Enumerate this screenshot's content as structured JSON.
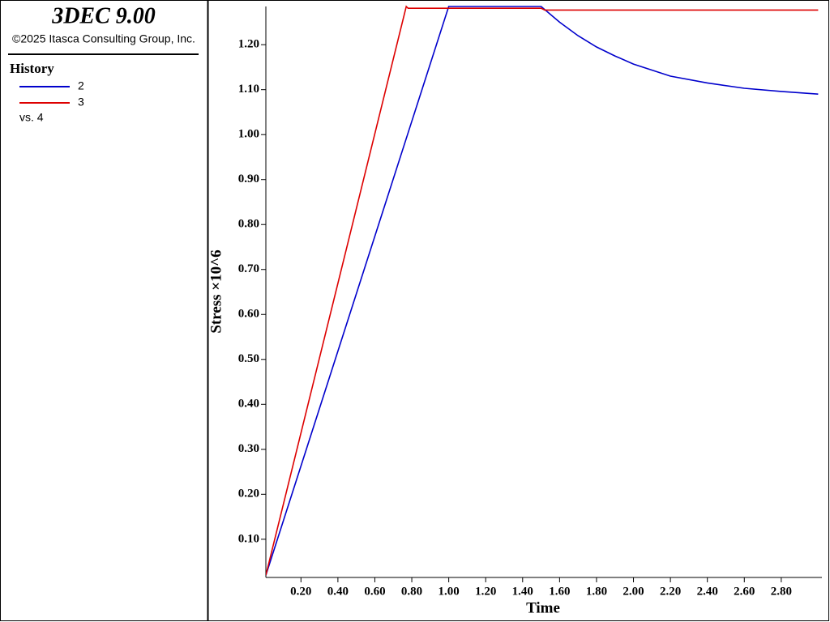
{
  "chart_data": {
    "type": "line",
    "app_title": "3DEC 9.00",
    "copyright": "©2025 Itasca Consulting Group, Inc.",
    "legend_title": "History",
    "legend_note": "vs. 4",
    "x_label": "Time",
    "y_label": "Stress ×10^6",
    "xlim": [
      0.01,
      3.02
    ],
    "ylim": [
      0.015,
      1.285
    ],
    "xticks": [
      {
        "value": 0.2,
        "label": "0.20"
      },
      {
        "value": 0.4,
        "label": "0.40"
      },
      {
        "value": 0.6,
        "label": "0.60"
      },
      {
        "value": 0.8,
        "label": "0.80"
      },
      {
        "value": 1.0,
        "label": "1.00"
      },
      {
        "value": 1.2,
        "label": "1.20"
      },
      {
        "value": 1.4,
        "label": "1.40"
      },
      {
        "value": 1.6,
        "label": "1.60"
      },
      {
        "value": 1.8,
        "label": "1.80"
      },
      {
        "value": 2.0,
        "label": "2.00"
      },
      {
        "value": 2.2,
        "label": "2.20"
      },
      {
        "value": 2.4,
        "label": "2.40"
      },
      {
        "value": 2.6,
        "label": "2.60"
      },
      {
        "value": 2.8,
        "label": "2.80"
      }
    ],
    "yticks": [
      {
        "value": 0.1,
        "label": "0.10"
      },
      {
        "value": 0.2,
        "label": "0.20"
      },
      {
        "value": 0.3,
        "label": "0.30"
      },
      {
        "value": 0.4,
        "label": "0.40"
      },
      {
        "value": 0.5,
        "label": "0.50"
      },
      {
        "value": 0.6,
        "label": "0.60"
      },
      {
        "value": 0.7,
        "label": "0.70"
      },
      {
        "value": 0.8,
        "label": "0.80"
      },
      {
        "value": 0.9,
        "label": "0.90"
      },
      {
        "value": 1.0,
        "label": "1.00"
      },
      {
        "value": 1.1,
        "label": "1.10"
      },
      {
        "value": 1.2,
        "label": "1.20"
      }
    ],
    "series": [
      {
        "name": "2",
        "color": "#0000cc",
        "x": [
          0.01,
          1.0,
          1.5,
          1.6,
          1.7,
          1.8,
          1.9,
          2.0,
          2.2,
          2.4,
          2.6,
          2.8,
          3.0
        ],
        "values": [
          0.02,
          1.285,
          1.285,
          1.25,
          1.22,
          1.195,
          1.175,
          1.157,
          1.13,
          1.115,
          1.103,
          1.096,
          1.09
        ]
      },
      {
        "name": "3",
        "color": "#dd0000",
        "x": [
          0.01,
          0.77,
          0.78,
          1.5,
          1.52,
          3.0
        ],
        "values": [
          0.02,
          1.285,
          1.281,
          1.281,
          1.277,
          1.277
        ]
      }
    ]
  }
}
